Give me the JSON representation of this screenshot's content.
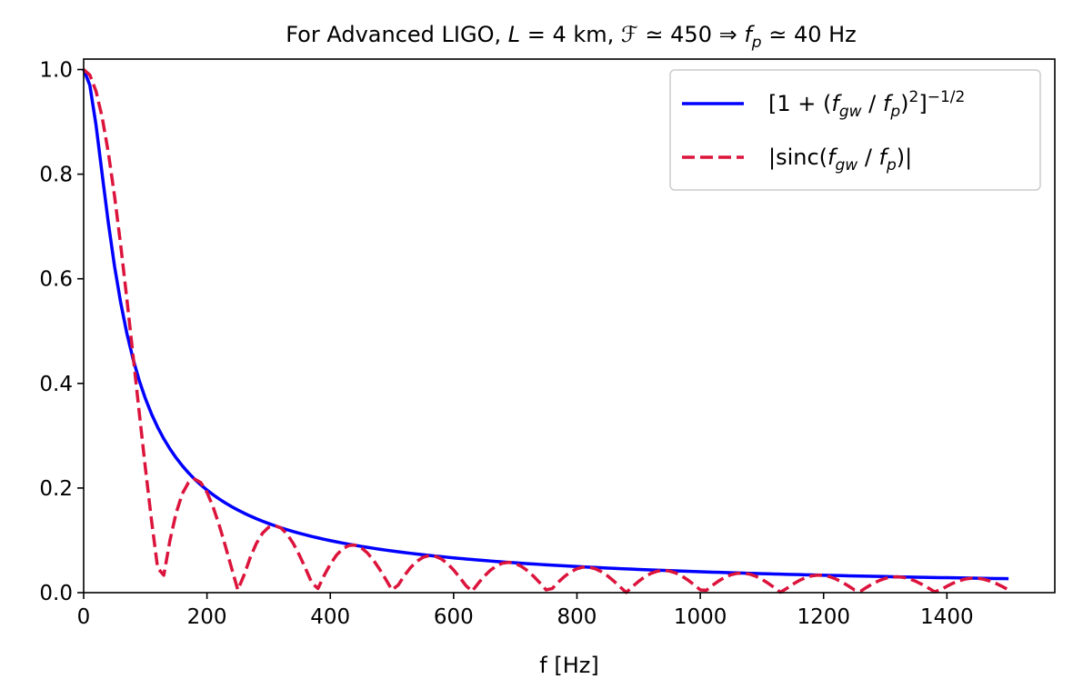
{
  "chart_data": {
    "type": "line",
    "title_parts": {
      "prefix": "For Advanced LIGO, ",
      "L_symbol": "L",
      "L_value": " = 4 km, ",
      "finesse_symbol": "ℱ",
      "finesse_value": " ≃ 450  ⇒  ",
      "fp_symbol": "f",
      "fp_sub": "p",
      "fp_value": " ≃ 40 Hz"
    },
    "xlabel": "f [Hz]",
    "ylabel": "",
    "xlim": [
      0,
      1575
    ],
    "ylim": [
      0.0,
      1.02
    ],
    "xticks": [
      0,
      200,
      400,
      600,
      800,
      1000,
      1200,
      1400
    ],
    "yticks": [
      0.0,
      0.2,
      0.4,
      0.6,
      0.8,
      1.0
    ],
    "xtick_labels": [
      "0",
      "200",
      "400",
      "600",
      "800",
      "1000",
      "1200",
      "1400"
    ],
    "ytick_labels": [
      "0.0",
      "0.2",
      "0.4",
      "0.6",
      "0.8",
      "1.0"
    ],
    "grid": false,
    "legend_position": "top-right",
    "f_p": 40,
    "x_min": 0,
    "x_max": 1500,
    "x_step": 10,
    "series": [
      {
        "name": "lorentzian",
        "formula": "1/sqrt(1+(f/fp)^2)",
        "color": "#0000ff",
        "style": "solid",
        "legend": {
          "open": "[1 + (",
          "f1": "f",
          "s1": "gw",
          "slash": " / ",
          "f2": "f",
          "s2": "p",
          "close": ")",
          "sup2": "2",
          "bracket": "]",
          "exp": "−1/2"
        }
      },
      {
        "name": "sinc",
        "formula": "|sin(f/fp)/(f/fp)|",
        "color": "#dc143c",
        "style": "dashed",
        "legend": {
          "open": "|sinc(",
          "f1": "f",
          "s1": "gw",
          "slash": " / ",
          "f2": "f",
          "s2": "p",
          "close": ")|"
        }
      }
    ]
  }
}
